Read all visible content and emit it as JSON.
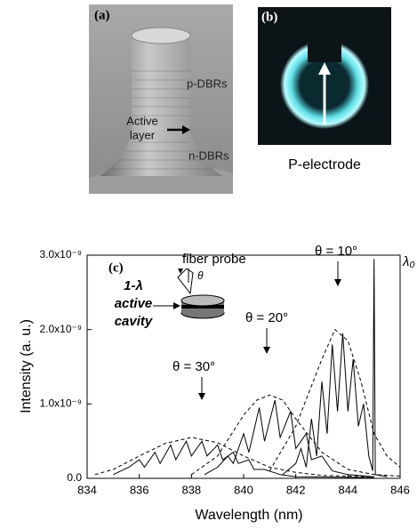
{
  "panel_a": {
    "label": "(a)",
    "p_dbrs": "p-DBRs",
    "active_layer": [
      "Active",
      "layer"
    ],
    "n_dbrs": "n-DBRs"
  },
  "panel_b": {
    "label": "(b)",
    "caption": "P-electrode"
  },
  "chart_data": {
    "type": "line",
    "panel_label": "(c)",
    "x_label": "Wavelength (nm)",
    "y_label": "Intensity (a. u.)",
    "xlim": [
      834,
      846
    ],
    "xticks": [
      834,
      836,
      838,
      840,
      842,
      844,
      846
    ],
    "ylim": [
      0,
      3e-09
    ],
    "yticks": [
      {
        "value": 0,
        "label": "0.0"
      },
      {
        "value": 1e-09,
        "label": "1.0x10⁻⁹"
      },
      {
        "value": 2e-09,
        "label": "2.0x10⁻⁹"
      },
      {
        "value": 3e-09,
        "label": "3.0x10⁻⁹"
      }
    ],
    "annotations": [
      "fiber probe",
      "θ",
      "1-λ",
      "active",
      "cavity",
      "θ = 30°",
      "θ = 20°",
      "θ = 10°",
      "λ₀"
    ],
    "series": [
      {
        "color": "#000000",
        "dashed": false,
        "x": [
          835.0,
          835.6,
          836.0,
          836.2,
          836.6,
          836.8,
          837.2,
          837.4,
          837.8,
          838.0,
          838.4,
          838.6,
          839.0,
          839.2,
          839.6,
          839.8,
          840.2,
          840.4,
          840.8,
          841.4,
          842.0,
          845.0
        ],
        "values": [
          5e-11,
          1.5e-10,
          2.5e-10,
          1.5e-10,
          3.5e-10,
          2e-10,
          4.5e-10,
          2.5e-10,
          5e-10,
          3e-10,
          5e-10,
          3e-10,
          4.5e-10,
          2.5e-10,
          3.5e-10,
          2e-10,
          2.5e-10,
          1.2e-10,
          1.2e-10,
          5e-11,
          2e-11,
          1e-11
        ]
      },
      {
        "color": "#000000",
        "dashed": true,
        "x": [
          834.3,
          835,
          836,
          837,
          838,
          839,
          840,
          841,
          842,
          843,
          845
        ],
        "values": [
          5e-11,
          1.2e-10,
          3e-10,
          4.7e-10,
          5.5e-10,
          4.8e-10,
          3e-10,
          1.5e-10,
          8e-11,
          4e-11,
          2e-11
        ]
      },
      {
        "color": "#000000",
        "dashed": false,
        "x": [
          838.5,
          839.0,
          839.4,
          839.6,
          840.0,
          840.2,
          840.6,
          840.8,
          841.2,
          841.4,
          841.8,
          842.0,
          842.4,
          842.6,
          843.0,
          843.4,
          844.0,
          845.0
        ],
        "values": [
          5e-11,
          1.5e-10,
          3e-10,
          2e-10,
          6e-10,
          3.5e-10,
          9.5e-10,
          5e-10,
          1.05e-09,
          5.5e-10,
          9e-10,
          4e-10,
          6e-10,
          2.5e-10,
          3e-10,
          1e-10,
          5e-11,
          2e-11
        ]
      },
      {
        "color": "#000000",
        "dashed": true,
        "x": [
          838,
          839,
          840,
          840.5,
          841,
          841.5,
          842,
          843,
          844,
          845,
          846
        ],
        "values": [
          5e-11,
          3e-10,
          8.5e-10,
          1.05e-09,
          1.12e-09,
          1.05e-09,
          8e-10,
          3.5e-10,
          1.2e-10,
          5e-11,
          3e-11
        ]
      },
      {
        "color": "#000000",
        "dashed": false,
        "x": [
          841.5,
          842.0,
          842.2,
          842.4,
          842.6,
          842.8,
          843.0,
          843.2,
          843.4,
          843.6,
          843.8,
          844.0,
          844.2,
          844.4,
          844.6,
          844.8,
          844.95,
          845.0,
          845.05,
          845.5
        ],
        "values": [
          5e-11,
          2e-10,
          4e-10,
          1.5e-10,
          8e-10,
          3e-10,
          1.3e-09,
          6e-10,
          1.8e-09,
          9e-10,
          1.95e-09,
          9e-10,
          1.6e-09,
          7e-10,
          1e-09,
          3e-10,
          1e-10,
          2.95e-09,
          5e-11,
          2e-11
        ]
      },
      {
        "color": "#000000",
        "dashed": true,
        "x": [
          841,
          842,
          843,
          843.5,
          844,
          844.5,
          845,
          845.5,
          846
        ],
        "values": [
          1e-10,
          7e-10,
          1.6e-09,
          2e-09,
          1.85e-09,
          1.3e-09,
          6e-10,
          3e-10,
          1.5e-10
        ]
      }
    ]
  }
}
